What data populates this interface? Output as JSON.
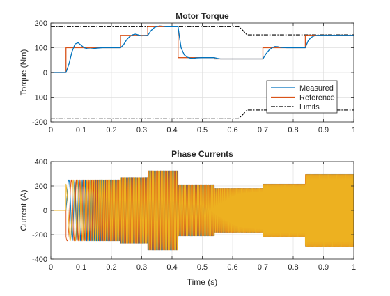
{
  "chart_data": [
    {
      "type": "line",
      "title": "Motor Torque",
      "xlabel": "",
      "ylabel": "Torque (Nm)",
      "xlim": [
        0,
        1
      ],
      "ylim": [
        -200,
        200
      ],
      "xticks": [
        0,
        0.1,
        0.2,
        0.3,
        0.4,
        0.5,
        0.6,
        0.7,
        0.8,
        0.9,
        1
      ],
      "xtick_labels": [
        "0",
        "0.1",
        "0.2",
        "0.3",
        "0.4",
        "0.5",
        "0.6",
        "0.7",
        "0.8",
        "0.9",
        "1"
      ],
      "yticks": [
        -200,
        -100,
        0,
        100,
        200
      ],
      "ytick_labels": [
        "-200",
        "-100",
        "0",
        "100",
        "200"
      ],
      "grid": true,
      "legend": {
        "position": "bottom-right",
        "entries": [
          "Measured",
          "Reference",
          "Limits"
        ]
      },
      "series": [
        {
          "name": "Reference",
          "color": "#d95319",
          "style": "solid",
          "x": [
            0,
            0.05,
            0.05,
            0.23,
            0.23,
            0.32,
            0.32,
            0.42,
            0.42,
            0.54,
            0.54,
            0.7,
            0.7,
            0.84,
            0.84,
            1.0
          ],
          "y": [
            0,
            0,
            100,
            100,
            150,
            150,
            185,
            185,
            60,
            60,
            55,
            55,
            100,
            100,
            150,
            150
          ]
        },
        {
          "name": "Measured",
          "color": "#0072bd",
          "style": "solid",
          "x": [
            0,
            0.05,
            0.06,
            0.07,
            0.08,
            0.09,
            0.1,
            0.11,
            0.12,
            0.13,
            0.15,
            0.17,
            0.23,
            0.24,
            0.25,
            0.26,
            0.27,
            0.28,
            0.29,
            0.3,
            0.32,
            0.33,
            0.34,
            0.35,
            0.36,
            0.37,
            0.38,
            0.4,
            0.42,
            0.425,
            0.43,
            0.44,
            0.45,
            0.46,
            0.47,
            0.48,
            0.5,
            0.54,
            0.55,
            0.56,
            0.58,
            0.7,
            0.71,
            0.72,
            0.73,
            0.74,
            0.75,
            0.76,
            0.78,
            0.84,
            0.845,
            0.85,
            0.86,
            0.87,
            0.88,
            0.9,
            1.0
          ],
          "y": [
            0,
            0,
            35,
            85,
            115,
            120,
            110,
            100,
            96,
            95,
            98,
            100,
            100,
            112,
            132,
            145,
            152,
            155,
            151,
            148,
            150,
            168,
            180,
            186,
            188,
            187,
            185,
            185,
            185,
            140,
            100,
            72,
            62,
            58,
            57,
            59,
            60,
            60,
            57,
            55,
            55,
            55,
            75,
            90,
            100,
            105,
            104,
            101,
            100,
            100,
            115,
            130,
            142,
            148,
            150,
            150,
            150
          ]
        },
        {
          "name": "Limits",
          "color": "#000000",
          "style": "dash-dot",
          "x": [
            0,
            0.62,
            0.63,
            0.64,
            0.645,
            0.65,
            1.0
          ],
          "y": [
            185,
            185,
            175,
            162,
            155,
            152,
            152
          ]
        },
        {
          "name": "Limits",
          "color": "#000000",
          "style": "dash-dot",
          "x": [
            0,
            0.62,
            0.63,
            0.64,
            0.645,
            0.65,
            1.0
          ],
          "y": [
            -185,
            -185,
            -175,
            -162,
            -155,
            -152,
            -152
          ]
        }
      ]
    },
    {
      "type": "line",
      "title": "Phase Currents",
      "xlabel": "Time (s)",
      "ylabel": "Current (A)",
      "xlim": [
        0,
        1
      ],
      "ylim": [
        -400,
        400
      ],
      "xticks": [
        0,
        0.1,
        0.2,
        0.3,
        0.4,
        0.5,
        0.6,
        0.7,
        0.8,
        0.9,
        1
      ],
      "xtick_labels": [
        "0",
        "0.1",
        "0.2",
        "0.3",
        "0.4",
        "0.5",
        "0.6",
        "0.7",
        "0.8",
        "0.9",
        "1"
      ],
      "yticks": [
        -400,
        -200,
        0,
        200,
        400
      ],
      "ytick_labels": [
        "-400",
        "-200",
        "0",
        "200",
        "400"
      ],
      "grid": true,
      "phases": [
        {
          "color": "#0072bd",
          "phase_deg": 0
        },
        {
          "color": "#d95319",
          "phase_deg": 120
        },
        {
          "color": "#edb120",
          "phase_deg": 240
        }
      ],
      "amplitude_envelope": {
        "t": [
          0,
          0.05,
          0.05,
          0.23,
          0.23,
          0.32,
          0.32,
          0.42,
          0.42,
          0.54,
          0.54,
          0.7,
          0.7,
          0.84,
          0.84,
          1.0
        ],
        "amp": [
          0,
          0,
          250,
          250,
          270,
          270,
          325,
          325,
          210,
          210,
          180,
          180,
          215,
          215,
          295,
          295
        ]
      },
      "electrical_frequency_hz": {
        "t": [
          0.05,
          0.08,
          0.2,
          0.5,
          0.62,
          0.7,
          1.0
        ],
        "f": [
          18,
          70,
          190,
          205,
          370,
          400,
          400
        ]
      }
    }
  ]
}
